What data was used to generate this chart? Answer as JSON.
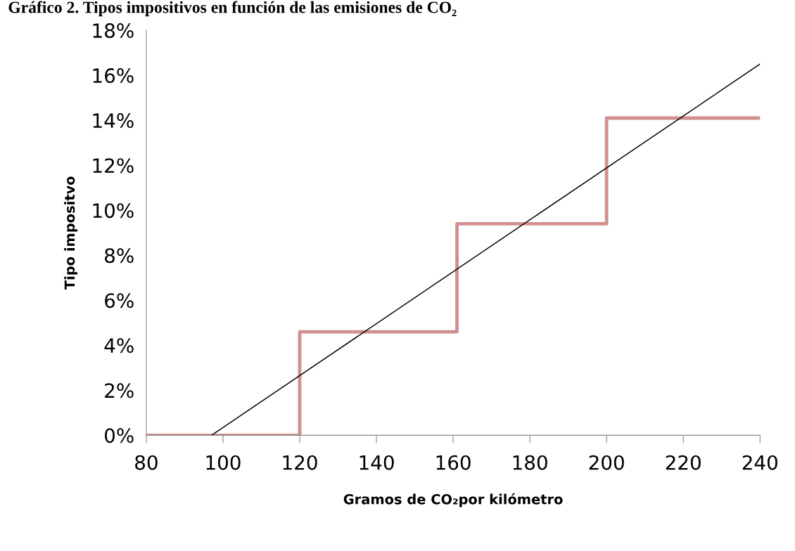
{
  "chart_data": {
    "type": "line",
    "title": "Gráfico 2. Tipos impositivos en función de las emisiones de CO₂",
    "xlabel": "Gramos de CO₂por kilómetro",
    "ylabel": "Tipo impositvo",
    "series": [
      {
        "type": "step",
        "color": "#d09090",
        "x": [
          80,
          120,
          161,
          200,
          240
        ],
        "values": [
          0,
          4.6,
          9.4,
          14.1,
          14.1
        ]
      },
      {
        "color": "#000000",
        "x": [
          97,
          240
        ],
        "values": [
          0,
          16.5
        ]
      }
    ],
    "xlim": [
      80,
      240
    ],
    "xticks": [
      80,
      100,
      120,
      140,
      160,
      180,
      200,
      220,
      240
    ],
    "ylim": [
      0,
      18
    ],
    "yticks": [
      {
        "value": 0,
        "label": "0%"
      },
      {
        "value": 2,
        "label": "2%"
      },
      {
        "value": 4,
        "label": "4%"
      },
      {
        "value": 6,
        "label": "6%"
      },
      {
        "value": 8,
        "label": "8%"
      },
      {
        "value": 10,
        "label": "10%"
      },
      {
        "value": 12,
        "label": "12%"
      },
      {
        "value": 14,
        "label": "14%"
      },
      {
        "value": 16,
        "label": "16%"
      },
      {
        "value": 18,
        "label": "18%"
      }
    ],
    "grid": false,
    "legend": false,
    "marker": "none"
  }
}
